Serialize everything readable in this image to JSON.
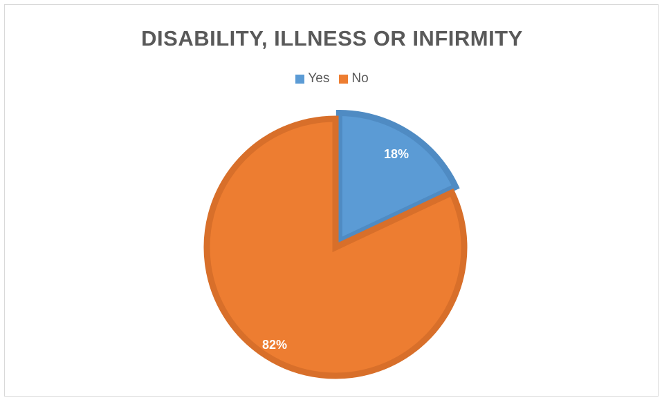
{
  "chart_data": {
    "type": "pie",
    "title": "DISABILITY, ILLNESS OR INFIRMITY",
    "categories": [
      "Yes",
      "No"
    ],
    "values": [
      18,
      82
    ],
    "data_labels": [
      "18%",
      "82%"
    ],
    "colors": [
      "#5b9bd5",
      "#ed7d31"
    ],
    "legend_position": "top"
  }
}
